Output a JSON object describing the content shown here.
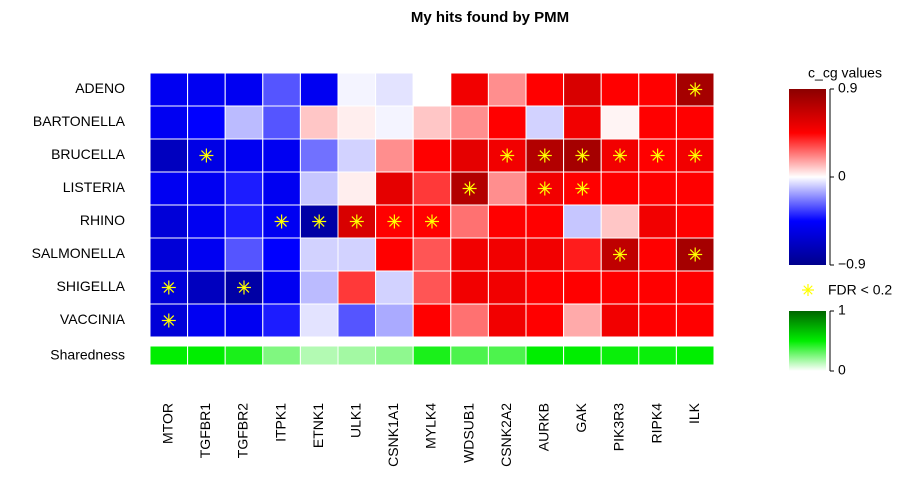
{
  "chart_data": {
    "type": "heatmap",
    "title": "My hits found by PMM",
    "rows": [
      "ADENO",
      "BARTONELLA",
      "BRUCELLA",
      "LISTERIA",
      "RHINO",
      "SALMONELLA",
      "SHIGELLA",
      "VACCINIA"
    ],
    "columns": [
      "MTOR",
      "TGFBR1",
      "TGFBR2",
      "ITPK1",
      "ETNK1",
      "ULK1",
      "CSNK1A1",
      "MYLK4",
      "WDSUB1",
      "CSNK2A2",
      "AURKB",
      "GAK",
      "PIK3R3",
      "RIPK4",
      "ILK"
    ],
    "values": [
      [
        -0.5,
        -0.5,
        -0.5,
        -0.3,
        -0.5,
        -0.02,
        -0.05,
        0,
        0.5,
        0.2,
        0.45,
        0.6,
        0.45,
        0.45,
        0.8
      ],
      [
        -0.5,
        -0.45,
        -0.12,
        -0.3,
        0.1,
        0.03,
        -0.02,
        0.1,
        0.2,
        0.45,
        -0.08,
        0.5,
        0.02,
        0.45,
        0.45
      ],
      [
        -0.7,
        -0.55,
        -0.5,
        -0.5,
        -0.25,
        -0.08,
        0.2,
        0.45,
        0.55,
        0.5,
        0.75,
        0.8,
        0.5,
        0.45,
        0.5
      ],
      [
        -0.5,
        -0.5,
        -0.4,
        -0.5,
        -0.1,
        0.03,
        0.55,
        0.35,
        0.75,
        0.2,
        0.5,
        0.45,
        0.45,
        0.45,
        0.45
      ],
      [
        -0.6,
        -0.5,
        -0.4,
        -0.5,
        -0.8,
        0.6,
        0.45,
        0.45,
        0.25,
        0.45,
        0.45,
        -0.1,
        0.1,
        0.5,
        0.45
      ],
      [
        -0.6,
        -0.5,
        -0.3,
        -0.45,
        -0.08,
        -0.08,
        0.45,
        0.3,
        0.5,
        0.5,
        0.5,
        0.4,
        0.7,
        0.45,
        0.8
      ],
      [
        -0.6,
        -0.7,
        -0.8,
        -0.5,
        -0.12,
        0.35,
        -0.08,
        0.3,
        0.5,
        0.5,
        0.45,
        0.45,
        0.45,
        0.45,
        0.45
      ],
      [
        -0.6,
        -0.5,
        -0.5,
        -0.4,
        -0.05,
        -0.3,
        -0.15,
        0.45,
        0.25,
        0.5,
        0.45,
        0.15,
        0.5,
        0.45,
        0.45
      ]
    ],
    "significant": [
      [
        false,
        false,
        false,
        false,
        false,
        false,
        false,
        false,
        false,
        false,
        false,
        false,
        false,
        false,
        true
      ],
      [
        false,
        false,
        false,
        false,
        false,
        false,
        false,
        false,
        false,
        false,
        false,
        false,
        false,
        false,
        false
      ],
      [
        false,
        true,
        false,
        false,
        false,
        false,
        false,
        false,
        false,
        true,
        true,
        true,
        true,
        true,
        true
      ],
      [
        false,
        false,
        false,
        false,
        false,
        false,
        false,
        false,
        true,
        false,
        true,
        true,
        false,
        false,
        false
      ],
      [
        false,
        false,
        false,
        true,
        true,
        true,
        true,
        true,
        false,
        false,
        false,
        false,
        false,
        false,
        false
      ],
      [
        false,
        false,
        false,
        false,
        false,
        false,
        false,
        false,
        false,
        false,
        false,
        false,
        true,
        false,
        true
      ],
      [
        true,
        false,
        true,
        false,
        false,
        false,
        false,
        false,
        false,
        false,
        false,
        false,
        false,
        false,
        false
      ],
      [
        true,
        false,
        false,
        false,
        false,
        false,
        false,
        false,
        false,
        false,
        false,
        false,
        false,
        false,
        false
      ]
    ],
    "star_color": "#ffff00",
    "clim": [
      -0.9,
      0.9
    ],
    "colors": [
      "#00008b",
      "#0000ff",
      "#ffffff",
      "#ff0000",
      "#8b0000"
    ],
    "legend_title": "c_cg values",
    "cticks": [
      0.9,
      0,
      {
        "value": -0.9,
        "label": "−0.9"
      }
    ],
    "significance_label": "FDR < 0.2",
    "sharedness_label": "Sharedness",
    "sharedness": [
      0.5,
      0.5,
      0.45,
      0.25,
      0.15,
      0.18,
      0.22,
      0.45,
      0.35,
      0.35,
      0.5,
      0.5,
      0.48,
      0.48,
      0.5
    ],
    "slim": [
      0,
      1
    ],
    "sharedness_colors": [
      "#ffffff",
      "#00ee00",
      "#006400"
    ],
    "sticks": [
      1,
      0
    ]
  }
}
